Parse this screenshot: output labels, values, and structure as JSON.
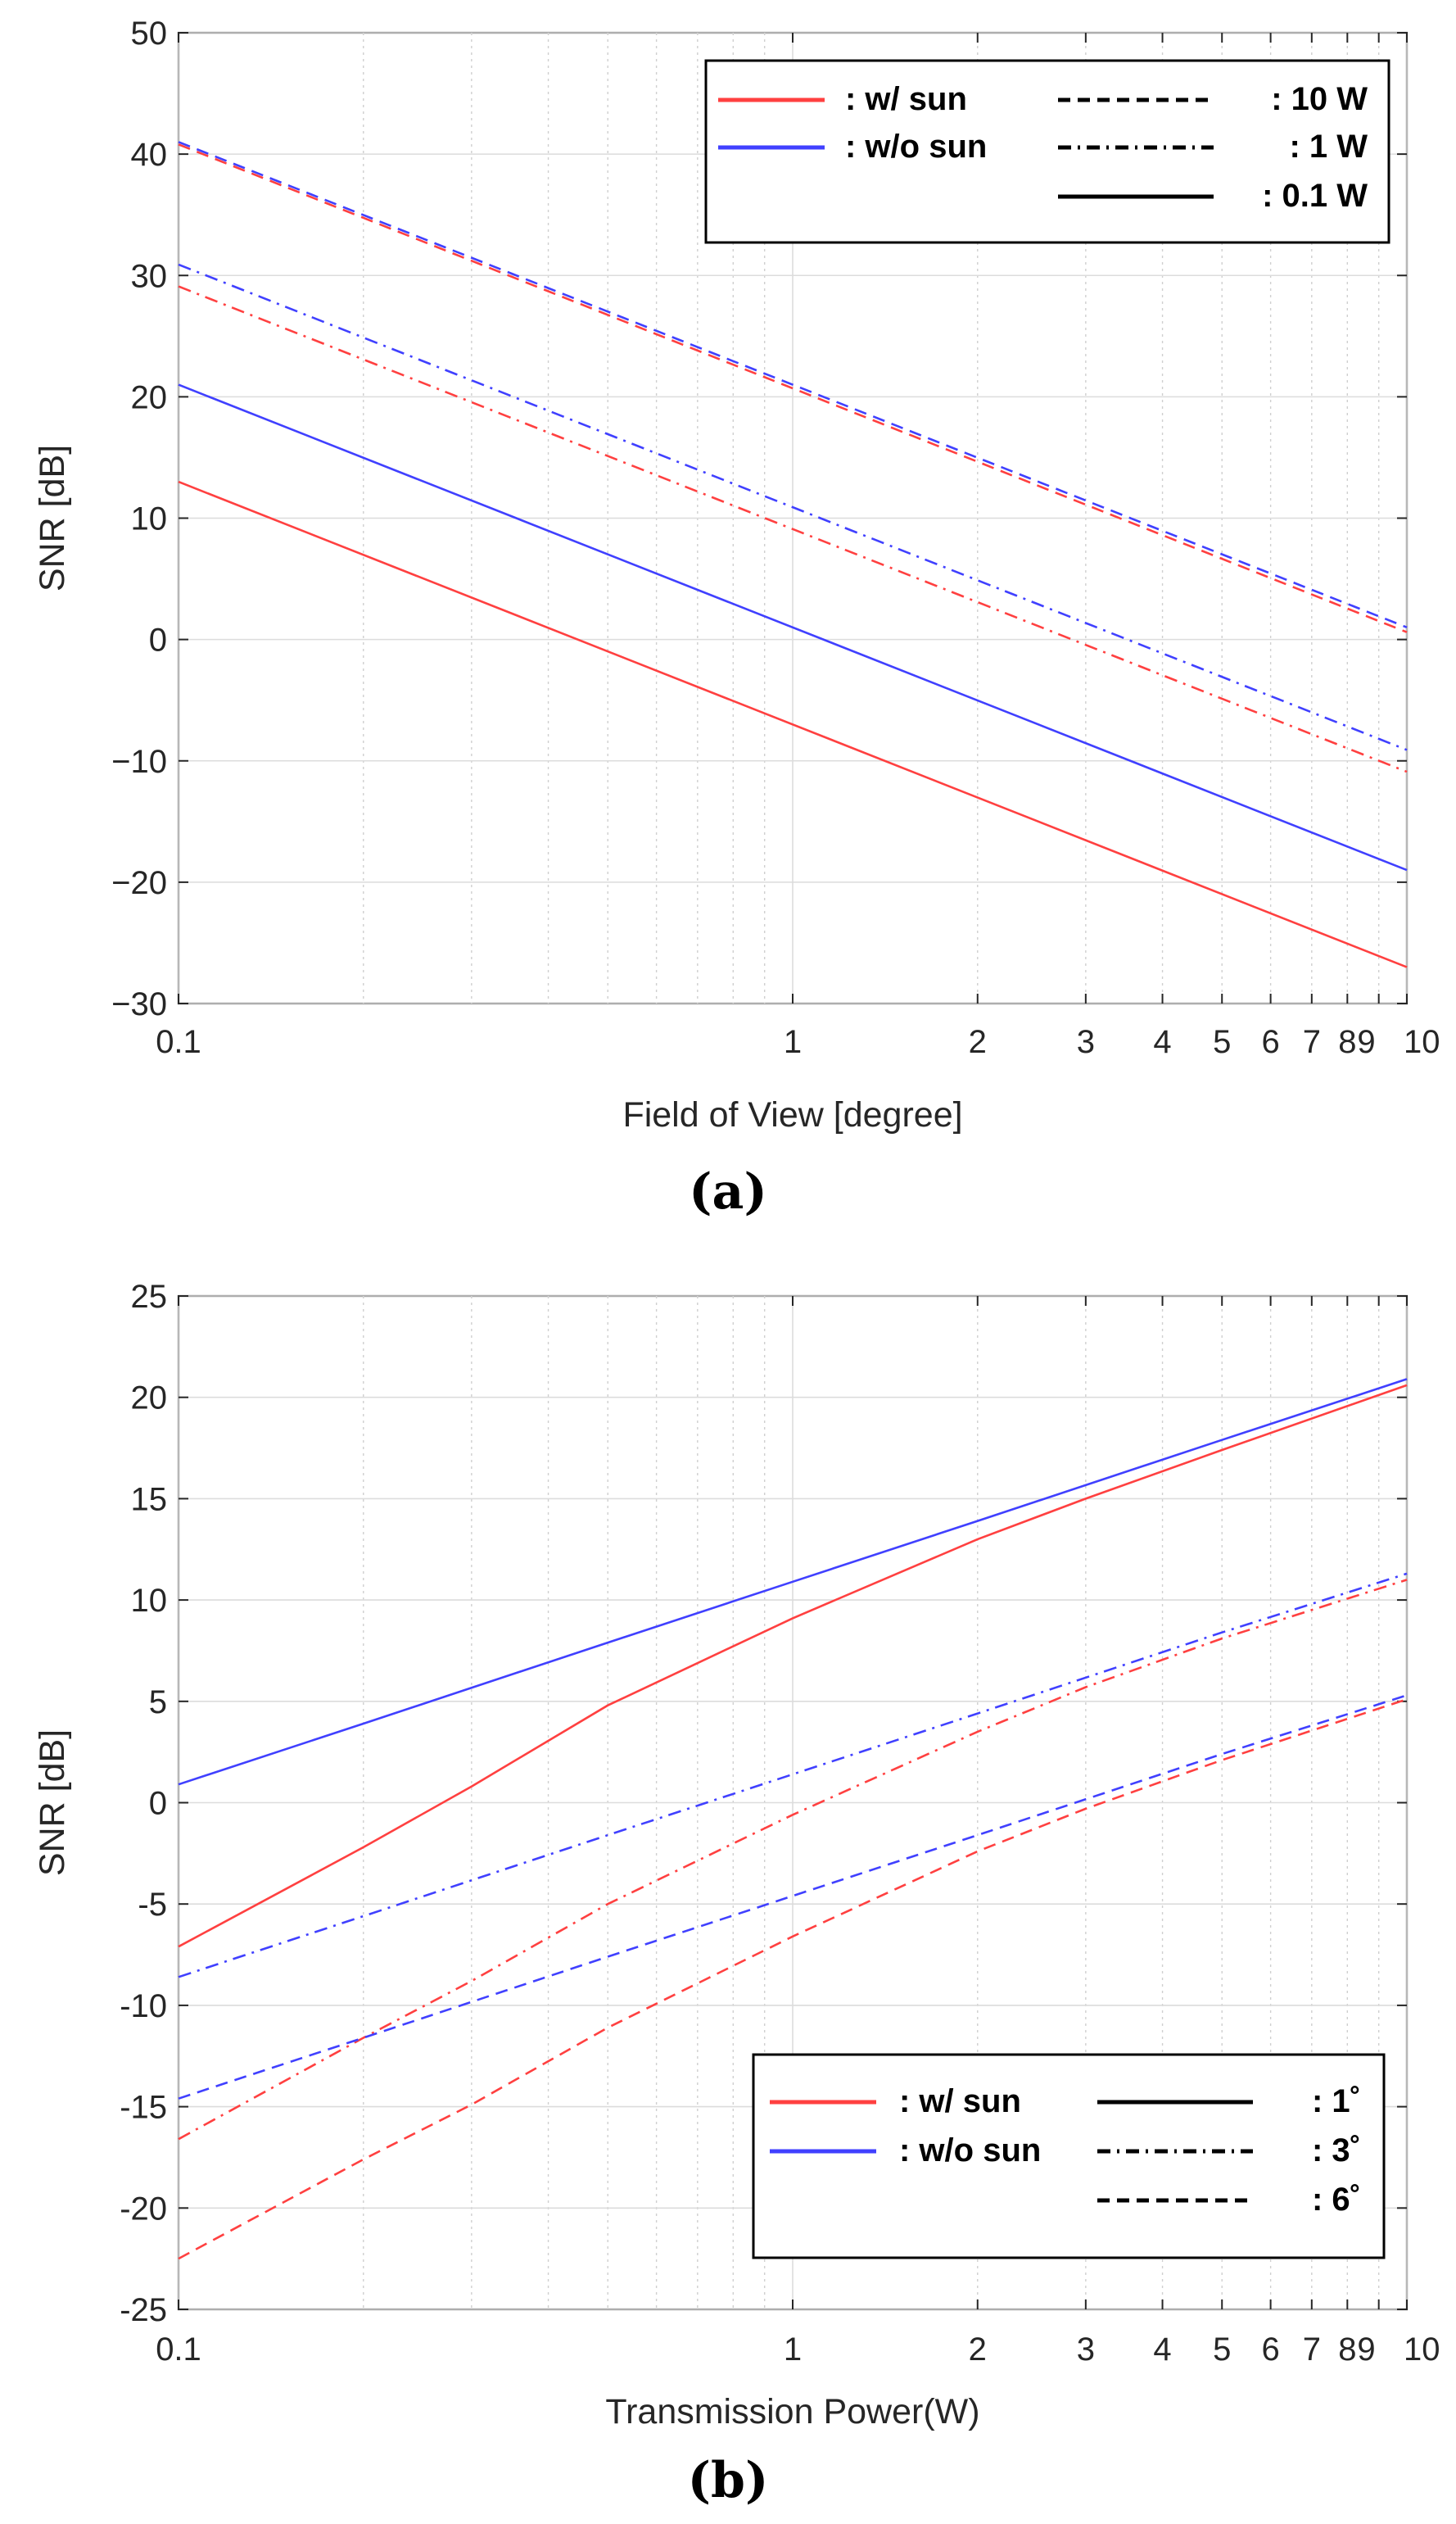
{
  "chart_data": [
    {
      "type": "line",
      "panel_label": "(a)",
      "xlabel": "Field of View [degree]",
      "ylabel": "SNR [dB]",
      "xscale": "log",
      "xlim": [
        0.1,
        10
      ],
      "ylim": [
        -30,
        50
      ],
      "grid": true,
      "x_ticks": [
        "0.1",
        "1",
        "2",
        "3",
        "4",
        "5",
        "6",
        "7",
        "8",
        "9",
        "10"
      ],
      "y_ticks": [
        "−30",
        "−20",
        "−10",
        "0",
        "10",
        "20",
        "30",
        "40",
        "50"
      ],
      "colors": {
        "w_sun": "#ff4040",
        "wo_sun": "#4040ff"
      },
      "legend": {
        "placement": "top-right",
        "colors": [
          {
            "label": ": w/   sun",
            "color": "#ff4040"
          },
          {
            "label": ": w/o  sun",
            "color": "#4040ff"
          }
        ],
        "styles": [
          {
            "label": ":  10 W",
            "dash": "dashed"
          },
          {
            "label": ":   1 W",
            "dash": "dashdot"
          },
          {
            "label": ": 0.1 W",
            "dash": "solid"
          }
        ]
      },
      "series": [
        {
          "name": "w/o sun, 10 W",
          "color": "#4040ff",
          "dash": "dashed",
          "x": [
            0.1,
            10
          ],
          "y": [
            41,
            1
          ]
        },
        {
          "name": "w/ sun, 10 W",
          "color": "#ff4040",
          "dash": "dashed",
          "x": [
            0.1,
            10
          ],
          "y": [
            40.8,
            0.6
          ]
        },
        {
          "name": "w/o sun, 1 W",
          "color": "#4040ff",
          "dash": "dashdot",
          "x": [
            0.1,
            10
          ],
          "y": [
            30.9,
            -9.1
          ]
        },
        {
          "name": "w/ sun, 1 W",
          "color": "#ff4040",
          "dash": "dashdot",
          "x": [
            0.1,
            10
          ],
          "y": [
            29.1,
            -10.9
          ]
        },
        {
          "name": "w/o sun, 0.1 W",
          "color": "#4040ff",
          "dash": "solid",
          "x": [
            0.1,
            10
          ],
          "y": [
            21,
            -19
          ]
        },
        {
          "name": "w/ sun, 0.1 W",
          "color": "#ff4040",
          "dash": "solid",
          "x": [
            0.1,
            10
          ],
          "y": [
            13,
            -27
          ]
        }
      ]
    },
    {
      "type": "line",
      "panel_label": "(b)",
      "xlabel": "Transmission Power(W)",
      "ylabel": "SNR [dB]",
      "xscale": "log",
      "xlim": [
        0.1,
        10
      ],
      "ylim": [
        -25,
        25
      ],
      "grid": true,
      "x_ticks": [
        "0.1",
        "1",
        "2",
        "3",
        "4",
        "5",
        "6",
        "7",
        "8",
        "9",
        "10"
      ],
      "y_ticks": [
        "-25",
        "-20",
        "-15",
        "-10",
        "-5",
        "0",
        "5",
        "10",
        "15",
        "20",
        "25"
      ],
      "colors": {
        "w_sun": "#ff4040",
        "wo_sun": "#4040ff"
      },
      "legend": {
        "placement": "bottom-right",
        "colors": [
          {
            "label": ": w/   sun",
            "color": "#ff4040"
          },
          {
            "label": ": w/o  sun",
            "color": "#4040ff"
          }
        ],
        "styles": [
          {
            "label": ":  1˚",
            "dash": "solid"
          },
          {
            "label": ":  3˚",
            "dash": "dashdot"
          },
          {
            "label": ":  6˚",
            "dash": "dashed"
          }
        ]
      },
      "series": [
        {
          "name": "w/o sun, 1°",
          "color": "#4040ff",
          "dash": "solid",
          "x": [
            0.1,
            0.2,
            0.5,
            1,
            2,
            5,
            10
          ],
          "y": [
            0.9,
            3.9,
            7.9,
            10.9,
            13.9,
            17.9,
            20.9
          ]
        },
        {
          "name": "w/ sun, 1°",
          "color": "#ff4040",
          "dash": "solid",
          "x": [
            0.1,
            0.2,
            0.3,
            0.5,
            1,
            2,
            3,
            5,
            10
          ],
          "y": [
            -7.1,
            -2.2,
            0.8,
            4.8,
            9.1,
            13.0,
            15.0,
            17.4,
            20.6
          ]
        },
        {
          "name": "w/o sun, 3°",
          "color": "#4040ff",
          "dash": "dashdot",
          "x": [
            0.1,
            0.2,
            0.5,
            1,
            2,
            5,
            10
          ],
          "y": [
            -8.6,
            -5.6,
            -1.6,
            1.4,
            4.4,
            8.4,
            11.3
          ]
        },
        {
          "name": "w/ sun, 3°",
          "color": "#ff4040",
          "dash": "dashdot",
          "x": [
            0.1,
            0.2,
            0.3,
            0.5,
            1,
            2,
            3,
            5,
            10
          ],
          "y": [
            -16.6,
            -11.6,
            -8.8,
            -5.0,
            -0.6,
            3.5,
            5.7,
            8.1,
            11.0
          ]
        },
        {
          "name": "w/o sun, 6°",
          "color": "#4040ff",
          "dash": "dashed",
          "x": [
            0.1,
            0.2,
            0.5,
            1,
            2,
            5,
            10
          ],
          "y": [
            -14.6,
            -11.6,
            -7.6,
            -4.6,
            -1.6,
            2.4,
            5.3
          ]
        },
        {
          "name": "w/ sun, 6°",
          "color": "#ff4040",
          "dash": "dashed",
          "x": [
            0.1,
            0.2,
            0.3,
            0.5,
            1,
            2,
            3,
            5,
            10
          ],
          "y": [
            -22.5,
            -17.6,
            -14.9,
            -11.1,
            -6.6,
            -2.4,
            -0.3,
            2.1,
            5.1
          ]
        }
      ]
    }
  ]
}
